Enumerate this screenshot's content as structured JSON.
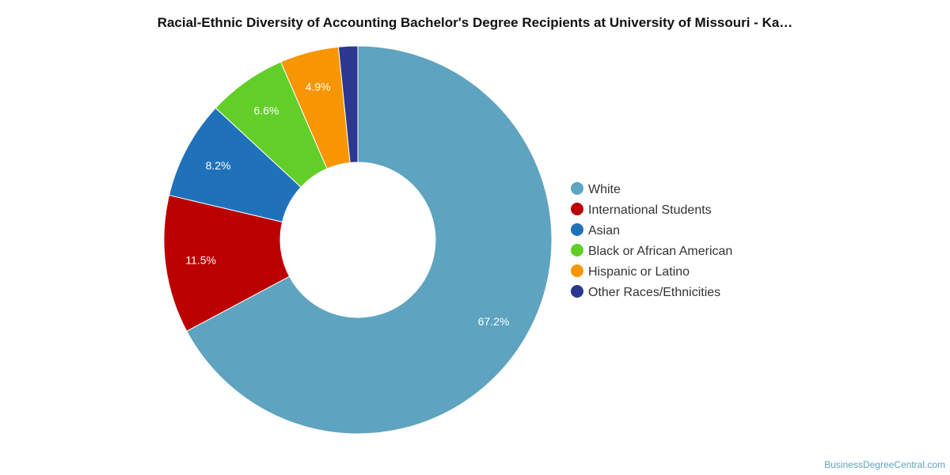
{
  "chart_data": {
    "type": "pie",
    "variant": "donut",
    "title": "Racial-Ethnic Diversity of Accounting Bachelor's Degree Recipients at University of Missouri - Ka…",
    "categories": [
      "White",
      "International Students",
      "Asian",
      "Black or African American",
      "Hispanic or Latino",
      "Other Races/Ethnicities"
    ],
    "values": [
      67.2,
      11.5,
      8.2,
      6.6,
      4.9,
      1.6
    ],
    "value_labels": [
      "67.2%",
      "11.5%",
      "8.2%",
      "6.6%",
      "4.9%",
      ""
    ],
    "colors": [
      "#5ea3c0",
      "#bb0000",
      "#1f72b9",
      "#62cf28",
      "#f79503",
      "#2c3790"
    ],
    "legend_position": "right"
  },
  "watermark": "BusinessDegreeCentral.com"
}
